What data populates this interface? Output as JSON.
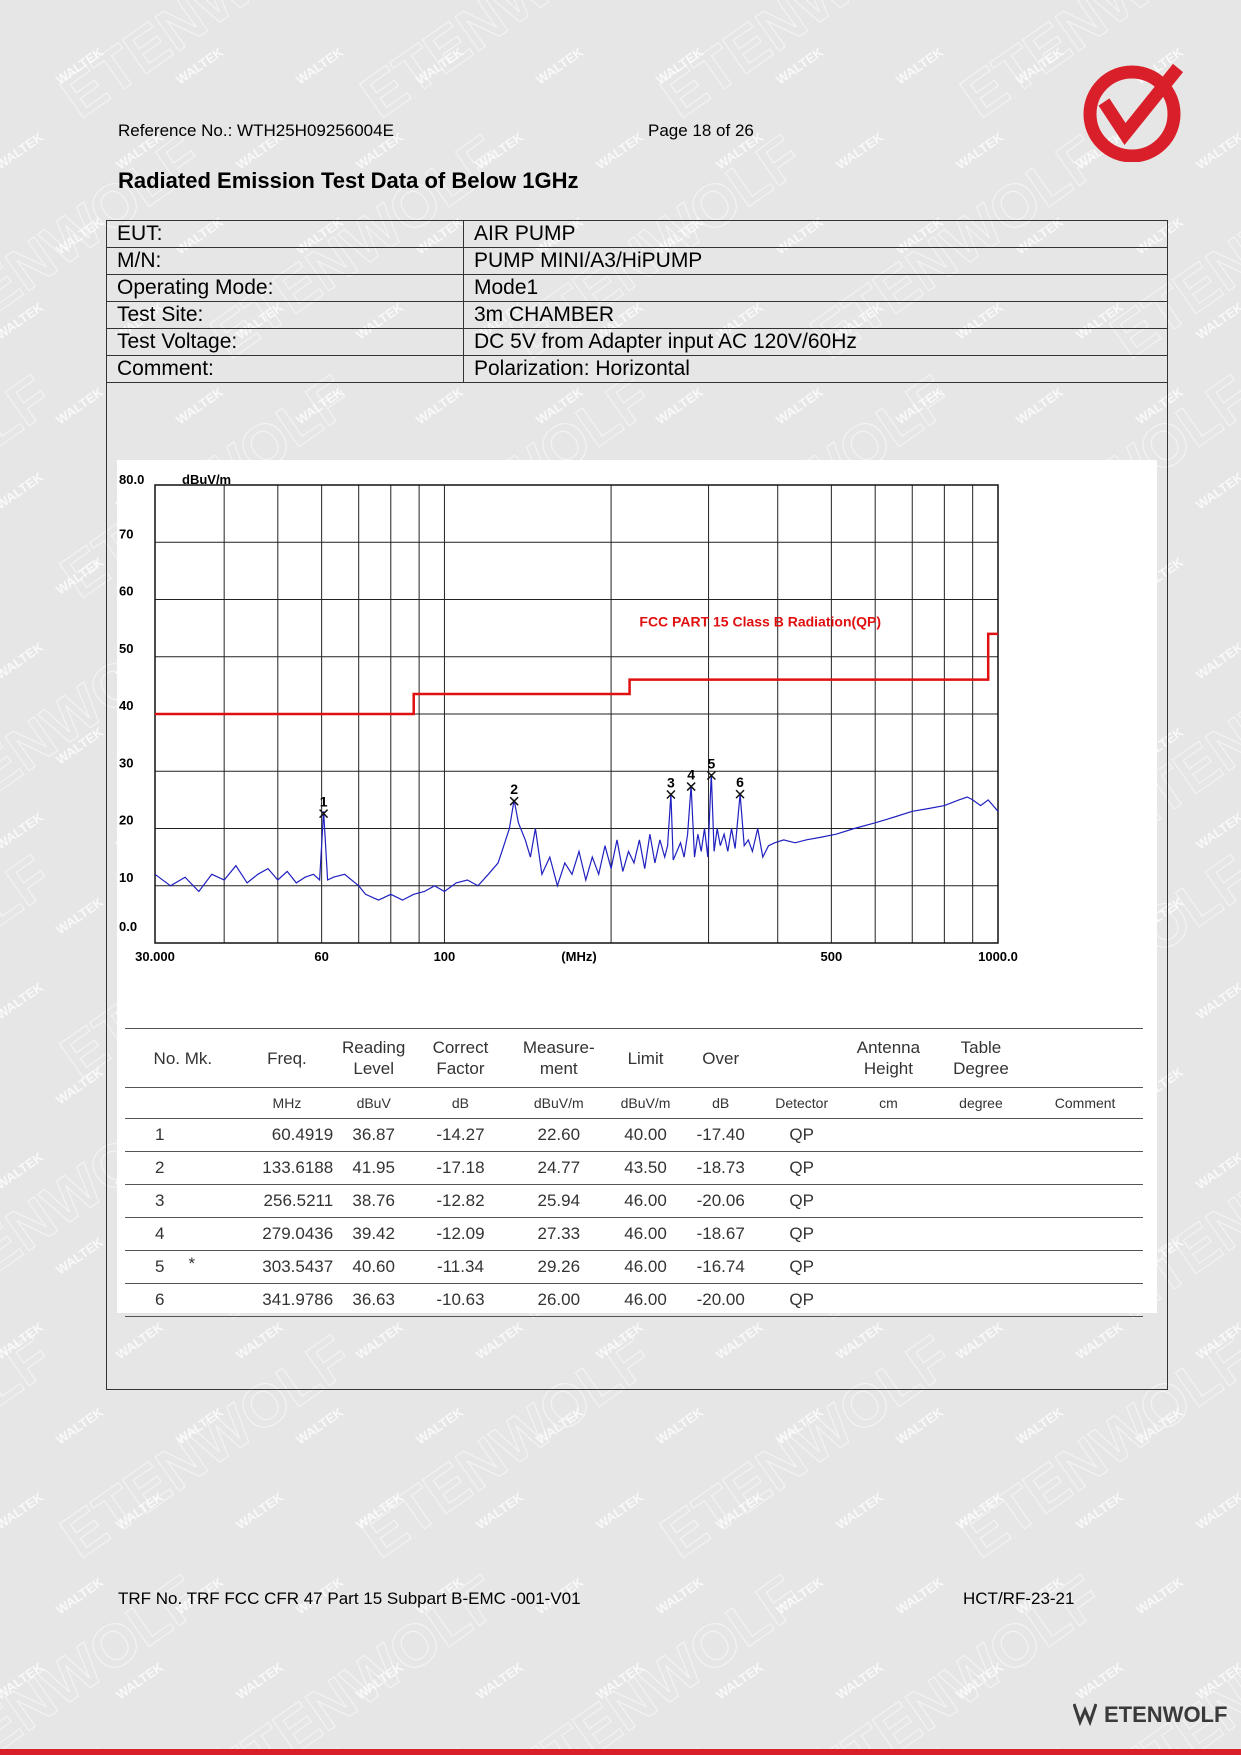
{
  "header": {
    "reference": "Reference No.: WTH25H09256004E",
    "page": "Page 18 of 26"
  },
  "title": "Radiated Emission Test Data of Below 1GHz",
  "info": [
    {
      "key": "EUT:",
      "value": "AIR PUMP"
    },
    {
      "key": "M/N:",
      "value": "PUMP MINI/A3/HiPUMP"
    },
    {
      "key": "Operating Mode:",
      "value": "Mode1"
    },
    {
      "key": "Test Site:",
      "value": "3m CHAMBER"
    },
    {
      "key": "Test Voltage:",
      "value": "DC 5V from Adapter input AC 120V/60Hz"
    },
    {
      "key": "Comment:",
      "value": "Polarization: Horizontal"
    }
  ],
  "chart_data": {
    "type": "line",
    "x_scale": "log",
    "xlim": [
      30,
      1000
    ],
    "ylim": [
      0,
      80
    ],
    "xlabel": "(MHz)",
    "ylabel": "dBuV/m",
    "x_tick_labels": [
      "30.000",
      "60",
      "100",
      "500",
      "1000.0"
    ],
    "x_tick_values": [
      30,
      60,
      100,
      500,
      1000
    ],
    "y_tick_labels": [
      "0.0",
      "10",
      "20",
      "30",
      "40",
      "50",
      "60",
      "70",
      "80.0"
    ],
    "y_tick_values": [
      0,
      10,
      20,
      30,
      40,
      50,
      60,
      70,
      80
    ],
    "grid": true,
    "limit_line": {
      "name": "FCC PART 15 Class B Radiation(QP)",
      "color": "#e01010",
      "x": [
        30,
        88,
        88,
        216,
        216,
        960,
        960,
        1000
      ],
      "y": [
        40,
        40,
        43.5,
        43.5,
        46,
        46,
        54,
        54
      ]
    },
    "trace": {
      "color": "#2020c0",
      "x": [
        30,
        32,
        34,
        36,
        38,
        40,
        42,
        44,
        46,
        48,
        50,
        52,
        54,
        56,
        58,
        59.5,
        60.5,
        61.5,
        63,
        66,
        70,
        72,
        76,
        80,
        84,
        88,
        92,
        96,
        100,
        105,
        110,
        115,
        120,
        125,
        128,
        131,
        133.6,
        136,
        140,
        143,
        146,
        150,
        155,
        160,
        165,
        170,
        175,
        180,
        185,
        190,
        195,
        200,
        205,
        210,
        215,
        220,
        225,
        230,
        235,
        240,
        245,
        250,
        253,
        256.5,
        259,
        263,
        267,
        271,
        275,
        279,
        283,
        287,
        291,
        295,
        299,
        303.5,
        307,
        311,
        315,
        320,
        325,
        330,
        335,
        342,
        348,
        354,
        360,
        368,
        376,
        385,
        395,
        410,
        430,
        450,
        480,
        510,
        550,
        600,
        650,
        700,
        750,
        800,
        850,
        880,
        900,
        930,
        960,
        1000
      ],
      "y": [
        12,
        10,
        11.5,
        9,
        12,
        11,
        13.5,
        10.5,
        12,
        13,
        11,
        12.5,
        10.5,
        11.5,
        12,
        11,
        23,
        11,
        11.5,
        12,
        10,
        8.5,
        7.5,
        8.5,
        7.5,
        8.5,
        9,
        10,
        9,
        10.5,
        11,
        10,
        12,
        14,
        17,
        20,
        25,
        21,
        18,
        15,
        20,
        12,
        15,
        10,
        14,
        12,
        16,
        11,
        15,
        12,
        17,
        13,
        18,
        12.5,
        16,
        14,
        18,
        13,
        19,
        14,
        18,
        15,
        17,
        26,
        14.5,
        16,
        17.5,
        15,
        19,
        27.5,
        15,
        19,
        16,
        20,
        15,
        29.5,
        16,
        20,
        17,
        19,
        16,
        20,
        16.5,
        26,
        17,
        18,
        16,
        20,
        15,
        17,
        17.5,
        18,
        17.5,
        18,
        18.5,
        19,
        20,
        21,
        22,
        23,
        23.5,
        24,
        25,
        25.5,
        25,
        24,
        25,
        23
      ]
    },
    "markers": [
      {
        "label": "1",
        "x": 60.4919,
        "y": 22.6
      },
      {
        "label": "2",
        "x": 133.6188,
        "y": 24.77
      },
      {
        "label": "3",
        "x": 256.5211,
        "y": 25.94
      },
      {
        "label": "4",
        "x": 279.0436,
        "y": 27.33
      },
      {
        "label": "5",
        "x": 303.5437,
        "y": 29.26
      },
      {
        "label": "6",
        "x": 341.9786,
        "y": 26.0
      }
    ]
  },
  "table": {
    "header1": [
      "No. Mk.",
      "Freq.",
      "Reading\nLevel",
      "Correct\nFactor",
      "Measure-\nment",
      "Limit",
      "Over",
      "",
      "Antenna\nHeight",
      "Table\nDegree",
      ""
    ],
    "units": [
      "",
      "MHz",
      "dBuV",
      "dB",
      "dBuV/m",
      "dBuV/m",
      "dB",
      "Detector",
      "cm",
      "degree",
      "Comment"
    ],
    "rows": [
      {
        "no": "1",
        "mk": "",
        "freq": "60.4919",
        "reading": "36.87",
        "factor": "-14.27",
        "measurement": "22.60",
        "limit": "40.00",
        "over": "-17.40",
        "detector": "QP"
      },
      {
        "no": "2",
        "mk": "",
        "freq": "133.6188",
        "reading": "41.95",
        "factor": "-17.18",
        "measurement": "24.77",
        "limit": "43.50",
        "over": "-18.73",
        "detector": "QP"
      },
      {
        "no": "3",
        "mk": "",
        "freq": "256.5211",
        "reading": "38.76",
        "factor": "-12.82",
        "measurement": "25.94",
        "limit": "46.00",
        "over": "-20.06",
        "detector": "QP"
      },
      {
        "no": "4",
        "mk": "",
        "freq": "279.0436",
        "reading": "39.42",
        "factor": "-12.09",
        "measurement": "27.33",
        "limit": "46.00",
        "over": "-18.67",
        "detector": "QP"
      },
      {
        "no": "5",
        "mk": "*",
        "freq": "303.5437",
        "reading": "40.60",
        "factor": "-11.34",
        "measurement": "29.26",
        "limit": "46.00",
        "over": "-16.74",
        "detector": "QP"
      },
      {
        "no": "6",
        "mk": "",
        "freq": "341.9786",
        "reading": "36.63",
        "factor": "-10.63",
        "measurement": "26.00",
        "limit": "46.00",
        "over": "-20.00",
        "detector": "QP"
      }
    ]
  },
  "footer": {
    "trf": "TRF No. TRF FCC CFR 47 Part 15 Subpart B-EMC -001-V01",
    "code": "HCT/RF-23-21",
    "brand": "ETENWOLF"
  },
  "watermark": [
    "WALTEK",
    "ETENWOLF"
  ],
  "colors": {
    "accent": "#d9202a",
    "limit": "#e01010",
    "trace": "#2020c0"
  }
}
